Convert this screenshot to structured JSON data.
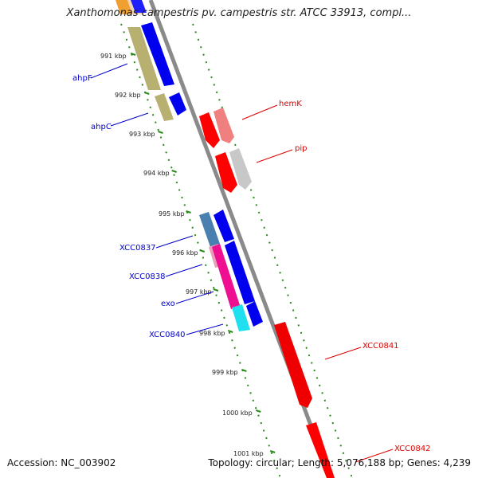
{
  "title": "Xanthomonas campestris pv. campestris str. ATCC 33913, compl...",
  "accession_text": "Accession: NC_003902",
  "summary_text": "Topology: circular; Length: 5,076,188 bp; Genes: 4,239",
  "colors": {
    "backbone": "#8a8a8a",
    "tick_dots": "#2a8a1a",
    "left_label": "#0000cc",
    "right_label": "#dd0000"
  },
  "kbp_ticks": [
    {
      "label": "991 kbp"
    },
    {
      "label": "992 kbp"
    },
    {
      "label": "993 kbp"
    },
    {
      "label": "994 kbp"
    },
    {
      "label": "995 kbp"
    },
    {
      "label": "996 kbp"
    },
    {
      "label": "997 kbp"
    },
    {
      "label": "998 kbp"
    },
    {
      "label": "999 kbp"
    },
    {
      "label": "1000 kbp"
    },
    {
      "label": "1001 kbp"
    }
  ],
  "left_labels": [
    {
      "text": "ahpF"
    },
    {
      "text": "ahpC"
    },
    {
      "text": "XCC0837"
    },
    {
      "text": "XCC0838"
    },
    {
      "text": "exo"
    },
    {
      "text": "XCC0840"
    }
  ],
  "right_labels": [
    {
      "text": "hemK"
    },
    {
      "text": "pip"
    },
    {
      "text": "XCC0841"
    },
    {
      "text": "XCC0842"
    }
  ]
}
